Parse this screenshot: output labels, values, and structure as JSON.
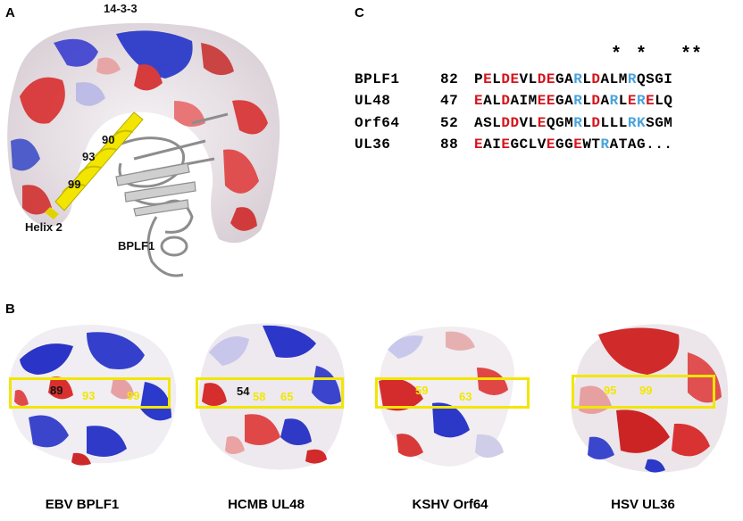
{
  "panels": {
    "a": "A",
    "b": "B",
    "c": "C"
  },
  "panel_a": {
    "title": "14-3-3",
    "helix_numbers": [
      "90",
      "93",
      "99"
    ],
    "helix_label": "Helix 2",
    "protein_label": "BPLF1"
  },
  "panel_c": {
    "stars": [
      "*",
      "*",
      "**"
    ],
    "rows": [
      {
        "name": "BPLF1",
        "start": "82",
        "residues": [
          [
            "P",
            "k"
          ],
          [
            "E",
            "r"
          ],
          [
            "L",
            "k"
          ],
          [
            "D",
            "r"
          ],
          [
            "E",
            "r"
          ],
          [
            "V",
            "k"
          ],
          [
            "L",
            "k"
          ],
          [
            "D",
            "r"
          ],
          [
            "E",
            "r"
          ],
          [
            "G",
            "k"
          ],
          [
            "A",
            "k"
          ],
          [
            "R",
            "b"
          ],
          [
            "L",
            "k"
          ],
          [
            "D",
            "r"
          ],
          [
            "A",
            "k"
          ],
          [
            "L",
            "k"
          ],
          [
            "M",
            "k"
          ],
          [
            "R",
            "b"
          ],
          [
            "Q",
            "k"
          ],
          [
            "S",
            "k"
          ],
          [
            "G",
            "k"
          ],
          [
            "I",
            "k"
          ]
        ]
      },
      {
        "name": "UL48",
        "start": "47",
        "residues": [
          [
            "E",
            "r"
          ],
          [
            "A",
            "k"
          ],
          [
            "L",
            "k"
          ],
          [
            "D",
            "r"
          ],
          [
            "A",
            "k"
          ],
          [
            "I",
            "k"
          ],
          [
            "M",
            "k"
          ],
          [
            "E",
            "r"
          ],
          [
            "E",
            "r"
          ],
          [
            "G",
            "k"
          ],
          [
            "A",
            "k"
          ],
          [
            "R",
            "b"
          ],
          [
            "L",
            "k"
          ],
          [
            "D",
            "r"
          ],
          [
            "A",
            "k"
          ],
          [
            "R",
            "b"
          ],
          [
            "L",
            "k"
          ],
          [
            "E",
            "r"
          ],
          [
            "R",
            "b"
          ],
          [
            "E",
            "r"
          ],
          [
            "L",
            "k"
          ],
          [
            "Q",
            "k"
          ]
        ]
      },
      {
        "name": "Orf64",
        "start": "52",
        "residues": [
          [
            "A",
            "k"
          ],
          [
            "S",
            "k"
          ],
          [
            "L",
            "k"
          ],
          [
            "D",
            "r"
          ],
          [
            "D",
            "r"
          ],
          [
            "V",
            "k"
          ],
          [
            "L",
            "k"
          ],
          [
            "E",
            "r"
          ],
          [
            "Q",
            "k"
          ],
          [
            "G",
            "k"
          ],
          [
            "M",
            "k"
          ],
          [
            "R",
            "b"
          ],
          [
            "L",
            "k"
          ],
          [
            "D",
            "r"
          ],
          [
            "L",
            "k"
          ],
          [
            "L",
            "k"
          ],
          [
            "L",
            "k"
          ],
          [
            "R",
            "b"
          ],
          [
            "K",
            "b"
          ],
          [
            "S",
            "k"
          ],
          [
            "G",
            "k"
          ],
          [
            "M",
            "k"
          ]
        ]
      },
      {
        "name": "UL36",
        "start": "88",
        "residues": [
          [
            "E",
            "r"
          ],
          [
            "A",
            "k"
          ],
          [
            "I",
            "k"
          ],
          [
            "E",
            "r"
          ],
          [
            "G",
            "k"
          ],
          [
            "C",
            "k"
          ],
          [
            "L",
            "k"
          ],
          [
            "V",
            "k"
          ],
          [
            "E",
            "r"
          ],
          [
            "G",
            "k"
          ],
          [
            "G",
            "k"
          ],
          [
            "E",
            "r"
          ],
          [
            "W",
            "k"
          ],
          [
            "T",
            "k"
          ],
          [
            "R",
            "b"
          ],
          [
            "A",
            "k"
          ],
          [
            "T",
            "k"
          ],
          [
            "A",
            "k"
          ],
          [
            "G",
            "k"
          ],
          [
            ".",
            "k"
          ],
          [
            ".",
            "k"
          ],
          [
            ".",
            "k"
          ]
        ]
      }
    ]
  },
  "panel_b": {
    "structures": [
      {
        "caption": "EBV BPLF1",
        "labels": [
          "89",
          "93",
          "99"
        ]
      },
      {
        "caption": "HCMB UL48",
        "labels": [
          "54",
          "58",
          "65"
        ]
      },
      {
        "caption": "KSHV Orf64",
        "labels": [
          "59",
          "63"
        ]
      },
      {
        "caption": "HSV UL36",
        "labels": [
          "95",
          "99"
        ]
      }
    ]
  },
  "colors": {
    "acidic": "#d4141c",
    "basic": "#4aa3dc",
    "highlight": "#f2e600"
  }
}
